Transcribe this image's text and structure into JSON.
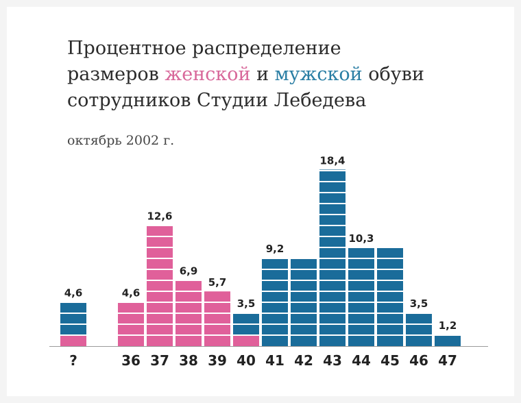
{
  "header": {
    "line1": "Процентное распределение",
    "line2_prefix": "размеров ",
    "line2_women": "женской",
    "line2_mid": " и ",
    "line2_men": "мужской",
    "line2_suffix": " обуви",
    "line3": "сотрудников Студии Лебедева",
    "subtitle": "октябрь 2002 г."
  },
  "colors": {
    "women": "#e0609a",
    "men": "#1a6c9a",
    "women_text": "#d8689a",
    "men_text": "#2a7ea4",
    "stripe": "#ffffff",
    "baseline": "#9a9a9a"
  },
  "chart_data": {
    "type": "bar",
    "title": "Процентное распределение размеров женской и мужской обуви сотрудников Студии Лебедева",
    "subtitle": "октябрь 2002 г.",
    "categories": [
      "?",
      "36",
      "37",
      "38",
      "39",
      "40",
      "41",
      "42",
      "43",
      "44",
      "45",
      "46",
      "47"
    ],
    "series": [
      {
        "name": "женской",
        "values": [
          1.2,
          4.6,
          12.6,
          6.9,
          5.7,
          1.2,
          0,
          0,
          0,
          0,
          0,
          0,
          0
        ]
      },
      {
        "name": "мужской",
        "values": [
          3.4,
          0,
          0,
          0,
          0,
          2.3,
          9.2,
          9.2,
          18.4,
          10.3,
          10.3,
          3.5,
          1.2
        ]
      }
    ],
    "totals": [
      4.6,
      4.6,
      12.6,
      6.9,
      5.7,
      3.5,
      9.2,
      9.2,
      18.4,
      10.3,
      10.3,
      3.5,
      1.2
    ],
    "labels": [
      "4,6",
      "4,6",
      "12,6",
      "6,9",
      "5,7",
      "3,5",
      "9,2",
      "",
      "18,4",
      "10,3",
      "",
      "3,5",
      "1,2"
    ],
    "xlabel": "",
    "ylabel": "",
    "ylim": [
      0,
      18.4
    ],
    "stacked": true,
    "grid": false,
    "legend": "none"
  }
}
